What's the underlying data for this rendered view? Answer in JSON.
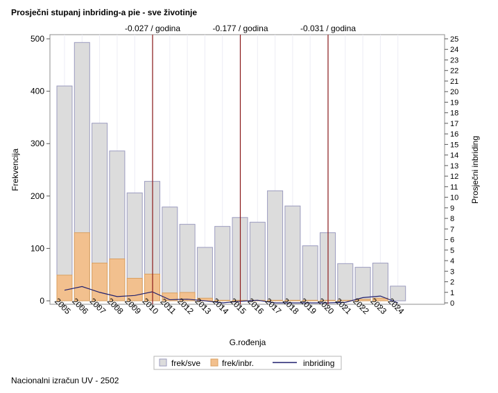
{
  "title": "Prosječni stupanj inbriding-a pie - sve životinje",
  "footnote": "Nacionalni izračun UV - 2502",
  "chart_data": {
    "type": "bar",
    "title": "Prosječni stupanj inbriding-a pie - sve životinje",
    "xlabel": "G.rođenja",
    "ylabel": "Frekvencija",
    "y2label": "Prosječni inbriding",
    "ylim": [
      0,
      500
    ],
    "y2lim": [
      0,
      25
    ],
    "yticks": [
      0,
      100,
      200,
      300,
      400,
      500
    ],
    "y2ticks": [
      0,
      1,
      2,
      3,
      4,
      5,
      6,
      7,
      8,
      9,
      10,
      11,
      12,
      13,
      14,
      15,
      16,
      17,
      18,
      19,
      20,
      21,
      22,
      23,
      24,
      25
    ],
    "categories": [
      "2005",
      "2006",
      "2007",
      "2008",
      "2009",
      "2010",
      "2011",
      "2012",
      "2013",
      "2014",
      "2015",
      "2016",
      "2017",
      "2018",
      "2019",
      "2020",
      "2021",
      "2022",
      "2023",
      "2024"
    ],
    "series": [
      {
        "name": "frek/sve",
        "kind": "bar",
        "color": "#dcdcdc",
        "stroke": "#9b9bbf",
        "values": [
          410,
          493,
          339,
          286,
          206,
          228,
          179,
          146,
          102,
          142,
          159,
          150,
          210,
          181,
          105,
          130,
          71,
          64,
          72,
          28
        ]
      },
      {
        "name": "frek/inbr.",
        "kind": "bar",
        "color": "#f2c08e",
        "stroke": "#d9a060",
        "values": [
          49,
          130,
          72,
          80,
          43,
          51,
          15,
          16,
          5,
          1,
          1,
          1,
          1,
          1,
          1,
          1,
          1,
          3,
          5,
          0
        ]
      },
      {
        "name": "inbriding",
        "kind": "line",
        "axis": "y2",
        "color": "#1f1f6e",
        "values": [
          1.2,
          1.55,
          1.0,
          0.6,
          0.7,
          1.05,
          0.3,
          0.35,
          0.2,
          0.0,
          0.15,
          0.25,
          0.0,
          0.0,
          0.0,
          0.0,
          0.05,
          0.5,
          0.65,
          0.0
        ]
      }
    ],
    "reference_lines": [
      {
        "category": "2010",
        "label": "-0.027 / godina",
        "color": "#8b1a1a"
      },
      {
        "category": "2015",
        "label": "-0.177 / godina",
        "color": "#8b1a1a"
      },
      {
        "category": "2020",
        "label": "-0.031 / godina",
        "color": "#8b1a1a"
      }
    ],
    "grid": "vertical",
    "legend_position": "bottom"
  }
}
